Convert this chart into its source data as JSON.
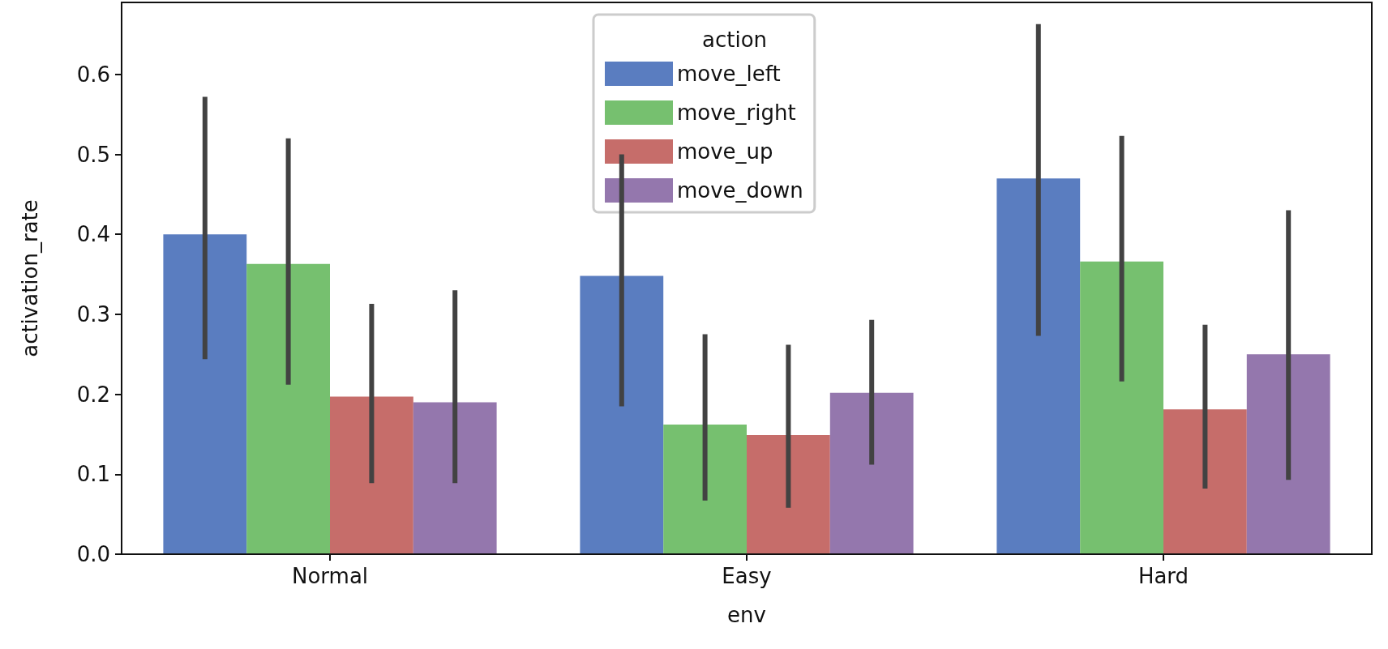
{
  "chart_data": {
    "type": "bar",
    "xlabel": "env",
    "ylabel": "activation_rate",
    "legend_title": "action",
    "legend": "top",
    "grid": false,
    "categories": [
      "Normal",
      "Easy",
      "Hard"
    ],
    "ylim": [
      0,
      0.69
    ],
    "yticks": [
      {
        "value": 0,
        "label": "0.0"
      },
      0.1,
      0.2,
      0.3,
      0.4,
      0.5,
      0.6
    ],
    "series": [
      {
        "name": "move_left",
        "color": "#5a7dc0",
        "values": [
          0.4,
          0.348,
          0.47
        ],
        "errors": [
          [
            0.244,
            0.572
          ],
          [
            0.185,
            0.5
          ],
          [
            0.273,
            0.663
          ]
        ]
      },
      {
        "name": "move_right",
        "color": "#76c06f",
        "values": [
          0.363,
          0.162,
          0.366
        ],
        "errors": [
          [
            0.212,
            0.52
          ],
          [
            0.067,
            0.275
          ],
          [
            0.216,
            0.523
          ]
        ]
      },
      {
        "name": "move_up",
        "color": "#c66d6a",
        "values": [
          0.197,
          0.149,
          0.181
        ],
        "errors": [
          [
            0.089,
            0.313
          ],
          [
            0.058,
            0.262
          ],
          [
            0.082,
            0.287
          ]
        ]
      },
      {
        "name": "move_down",
        "color": "#9477ad",
        "values": [
          0.19,
          0.202,
          0.25
        ],
        "errors": [
          [
            0.089,
            0.33
          ],
          [
            0.112,
            0.293
          ],
          [
            0.093,
            0.43
          ]
        ]
      }
    ]
  }
}
